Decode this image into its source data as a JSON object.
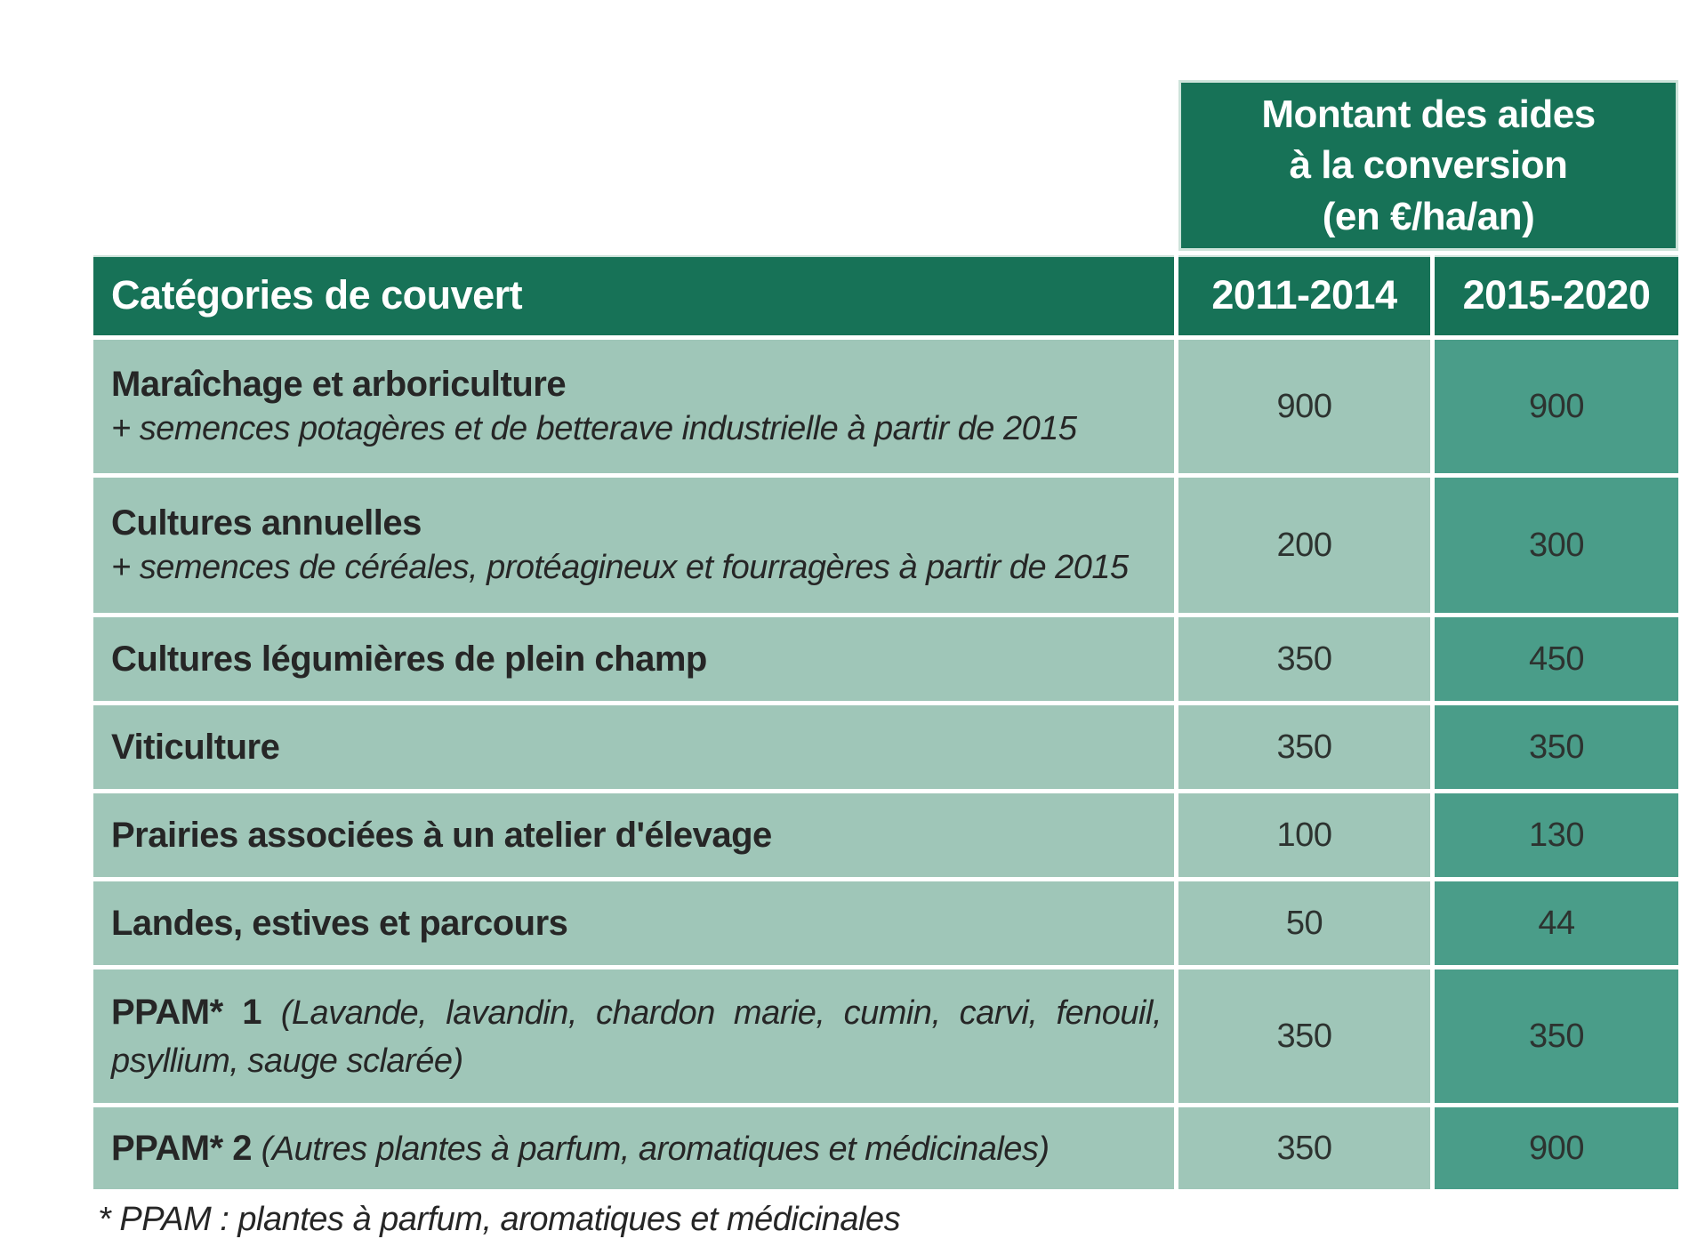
{
  "table": {
    "title_lines": [
      "Montant des aides",
      "à la conversion",
      "(en €/ha/an)"
    ],
    "columns": [
      "Catégories de couvert",
      "2011-2014",
      "2015-2020"
    ],
    "rows": [
      {
        "category": "Maraîchage et arboriculture",
        "note": "+ semences potagères et de betterave industrielle à partir de 2015",
        "values": [
          "900",
          "900"
        ]
      },
      {
        "category": "Cultures annuelles",
        "note": "+ semences de céréales, protéagineux et fourragères à partir de 2015",
        "values": [
          "200",
          "300"
        ]
      },
      {
        "category": "Cultures légumières de plein champ",
        "values": [
          "350",
          "450"
        ]
      },
      {
        "category": "Viticulture",
        "values": [
          "350",
          "350"
        ]
      },
      {
        "category": "Prairies associées à un atelier d'élevage",
        "values": [
          "100",
          "130"
        ]
      },
      {
        "category": "Landes, estives et parcours",
        "values": [
          "50",
          "44"
        ]
      },
      {
        "category": "PPAM* 1",
        "note_inline": "(Lavande, lavandin, chardon marie, cumin, carvi, fenouil, psyllium, sauge sclarée)",
        "values": [
          "350",
          "350"
        ]
      },
      {
        "category": "PPAM* 2",
        "note_inline": "(Autres plantes à parfum, aromatiques et médicinales)",
        "values": [
          "350",
          "900"
        ]
      }
    ],
    "footnote": "* PPAM : plantes à parfum, aromatiques et médicinales"
  },
  "colors": {
    "header_green": "#177257",
    "cell_sage": "#9fc6b8",
    "highlight_green": "#4a9d89",
    "pale_border": "#cde3da",
    "text_ink": "#262626",
    "header_text": "#ffffff"
  }
}
